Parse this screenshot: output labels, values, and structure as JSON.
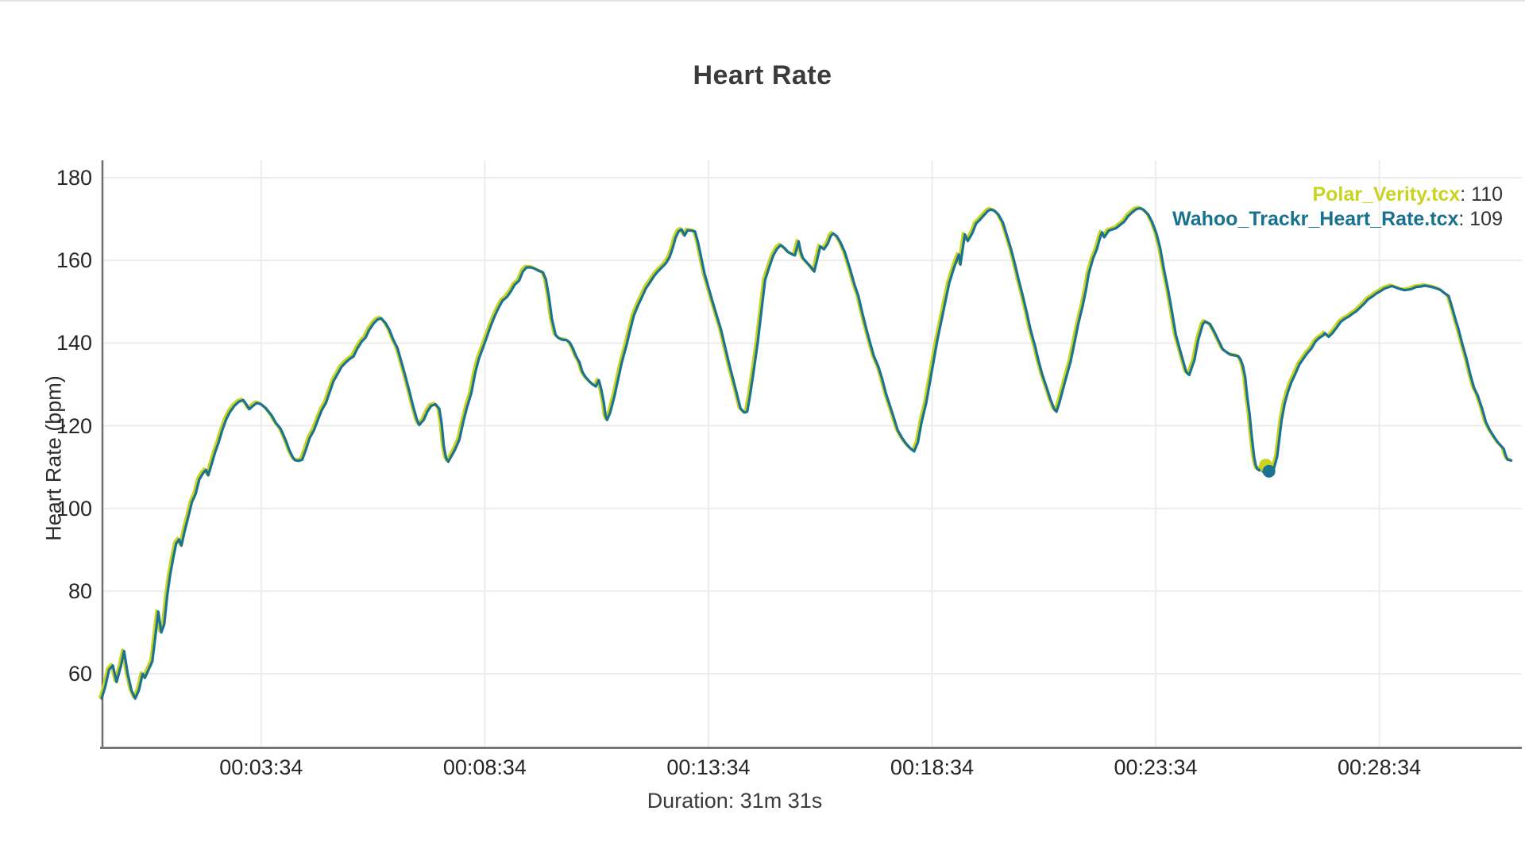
{
  "chart": {
    "title": "Heart Rate",
    "x_axis": {
      "label": "Duration: 31m 31s",
      "tick_labels": [
        "00:03:34",
        "00:08:34",
        "00:13:34",
        "00:18:34",
        "00:23:34",
        "00:28:34"
      ],
      "tick_times_s": [
        214,
        514,
        814,
        1114,
        1414,
        1714
      ]
    },
    "y_axis": {
      "label": "Heart Rate (bpm)",
      "tick_labels": [
        "60",
        "80",
        "100",
        "120",
        "140",
        "160",
        "180"
      ],
      "tick_values": [
        60,
        80,
        100,
        120,
        140,
        160,
        180
      ]
    },
    "legend": [
      {
        "name": "Polar_Verity.tcx",
        "value_text": ": 110",
        "color": "#c8d41f"
      },
      {
        "name": "Wahoo_Trackr_Heart_Rate.tcx",
        "value_text": ": 109",
        "color": "#17718f"
      }
    ],
    "colors": {
      "polar": "#c8d41f",
      "wahoo": "#1b7291",
      "grid": "#ececec",
      "axis": "#757575",
      "text": "#262626"
    }
  },
  "chart_data": {
    "type": "line",
    "title": "Heart Rate",
    "xlabel": "Duration: 31m 31s",
    "ylabel": "Heart Rate (bpm)",
    "x_unit": "seconds",
    "x_range_s": [
      0,
      1891
    ],
    "ylim": [
      42,
      184
    ],
    "grid": true,
    "legend_position": "top-right",
    "x_tick_labels": [
      "00:03:34",
      "00:08:34",
      "00:13:34",
      "00:18:34",
      "00:23:34",
      "00:28:34"
    ],
    "y_ticks": [
      60,
      80,
      100,
      120,
      140,
      160,
      180
    ],
    "series": [
      {
        "name": "Polar_Verity.tcx",
        "color": "#c8d41f",
        "cursor_value_bpm": 110,
        "note": "visually identical to Wahoo trace within ~1 bpm; drawn beneath it"
      },
      {
        "name": "Wahoo_Trackr_Heart_Rate.tcx",
        "color": "#1b7291",
        "cursor_value_bpm": 109
      }
    ],
    "cursor_marker": {
      "time_s": 1566,
      "polar_bpm": 110,
      "wahoo_bpm": 109
    },
    "points_t_bpm": [
      [
        0,
        54
      ],
      [
        5,
        57
      ],
      [
        10,
        61
      ],
      [
        15,
        62
      ],
      [
        20,
        58
      ],
      [
        26,
        62
      ],
      [
        30,
        65.5
      ],
      [
        35,
        60
      ],
      [
        40,
        56
      ],
      [
        45,
        54
      ],
      [
        50,
        56
      ],
      [
        55,
        60
      ],
      [
        58,
        59
      ],
      [
        63,
        61
      ],
      [
        68,
        63
      ],
      [
        72,
        69
      ],
      [
        76,
        75
      ],
      [
        80,
        70
      ],
      [
        84,
        72
      ],
      [
        88,
        79
      ],
      [
        92,
        84
      ],
      [
        96,
        88
      ],
      [
        100,
        91.5
      ],
      [
        104,
        92.5
      ],
      [
        107,
        91
      ],
      [
        112,
        95
      ],
      [
        117,
        98.5
      ],
      [
        121,
        101.5
      ],
      [
        126,
        103.5
      ],
      [
        131,
        107
      ],
      [
        136,
        108.5
      ],
      [
        140,
        109.3
      ],
      [
        143,
        108
      ],
      [
        148,
        111
      ],
      [
        152,
        113.5
      ],
      [
        157,
        116
      ],
      [
        162,
        119
      ],
      [
        167,
        121.5
      ],
      [
        172,
        123.3
      ],
      [
        178,
        124.8
      ],
      [
        184,
        125.8
      ],
      [
        190,
        126.2
      ],
      [
        194,
        125.2
      ],
      [
        198,
        124
      ],
      [
        203,
        124.8
      ],
      [
        208,
        125.5
      ],
      [
        213,
        125.3
      ],
      [
        220,
        124.3
      ],
      [
        228,
        122.5
      ],
      [
        234,
        120.6
      ],
      [
        240,
        119.3
      ],
      [
        244,
        117.7
      ],
      [
        248,
        116
      ],
      [
        252,
        114
      ],
      [
        256,
        112.5
      ],
      [
        259,
        111.7
      ],
      [
        264,
        111.5
      ],
      [
        269,
        111.8
      ],
      [
        274,
        114.2
      ],
      [
        279,
        117
      ],
      [
        285,
        119
      ],
      [
        290,
        121.4
      ],
      [
        295,
        123.7
      ],
      [
        301,
        125.6
      ],
      [
        306,
        128.2
      ],
      [
        311,
        130.8
      ],
      [
        317,
        132.7
      ],
      [
        322,
        134.3
      ],
      [
        328,
        135.4
      ],
      [
        333,
        136.2
      ],
      [
        338,
        136.8
      ],
      [
        343,
        138.7
      ],
      [
        349,
        140.4
      ],
      [
        354,
        141.3
      ],
      [
        359,
        143.2
      ],
      [
        365,
        144.8
      ],
      [
        370,
        145.7
      ],
      [
        375,
        146
      ],
      [
        381,
        144.8
      ],
      [
        386,
        143.2
      ],
      [
        391,
        140.9
      ],
      [
        397,
        138.7
      ],
      [
        402,
        135.5
      ],
      [
        407,
        132.3
      ],
      [
        413,
        128.2
      ],
      [
        418,
        124.6
      ],
      [
        423,
        121.4
      ],
      [
        426,
        120.2
      ],
      [
        432,
        121.4
      ],
      [
        437,
        123.4
      ],
      [
        442,
        124.8
      ],
      [
        448,
        125.2
      ],
      [
        453,
        124.1
      ],
      [
        456,
        120.6
      ],
      [
        459,
        115.1
      ],
      [
        462,
        112.2
      ],
      [
        465,
        111.3
      ],
      [
        469,
        112.6
      ],
      [
        474,
        114.2
      ],
      [
        480,
        116.7
      ],
      [
        485,
        120.9
      ],
      [
        490,
        124.4
      ],
      [
        496,
        128
      ],
      [
        501,
        132.7
      ],
      [
        506,
        136.2
      ],
      [
        512,
        139.1
      ],
      [
        517,
        141.6
      ],
      [
        522,
        144.2
      ],
      [
        528,
        146.8
      ],
      [
        533,
        148.7
      ],
      [
        538,
        150.3
      ],
      [
        544,
        151.2
      ],
      [
        549,
        152.5
      ],
      [
        554,
        154.1
      ],
      [
        560,
        155.1
      ],
      [
        565,
        157.3
      ],
      [
        570,
        158.3
      ],
      [
        576,
        158.3
      ],
      [
        581,
        158
      ],
      [
        586,
        157.5
      ],
      [
        592,
        157.1
      ],
      [
        596,
        155.4
      ],
      [
        600,
        151.2
      ],
      [
        604,
        145.8
      ],
      [
        609,
        142
      ],
      [
        613,
        141.2
      ],
      [
        618,
        140.8
      ],
      [
        624,
        140.7
      ],
      [
        628,
        140.1
      ],
      [
        632,
        138.8
      ],
      [
        636,
        137
      ],
      [
        641,
        135.3
      ],
      [
        645,
        133
      ],
      [
        649,
        131.8
      ],
      [
        654,
        130.8
      ],
      [
        658,
        130.1
      ],
      [
        663,
        129.5
      ],
      [
        667,
        131
      ],
      [
        670,
        129
      ],
      [
        674,
        125.3
      ],
      [
        676,
        122.4
      ],
      [
        678,
        121.4
      ],
      [
        682,
        123.1
      ],
      [
        688,
        127.2
      ],
      [
        693,
        131.4
      ],
      [
        698,
        135.5
      ],
      [
        704,
        139.4
      ],
      [
        709,
        143.2
      ],
      [
        714,
        146.7
      ],
      [
        720,
        149.3
      ],
      [
        725,
        151.2
      ],
      [
        730,
        153.2
      ],
      [
        736,
        154.8
      ],
      [
        741,
        156.2
      ],
      [
        746,
        157.3
      ],
      [
        752,
        158.4
      ],
      [
        757,
        159.3
      ],
      [
        762,
        160.8
      ],
      [
        766,
        163
      ],
      [
        770,
        165.5
      ],
      [
        774,
        167
      ],
      [
        778,
        167.5
      ],
      [
        782,
        166
      ],
      [
        786,
        167.3
      ],
      [
        791,
        167.2
      ],
      [
        796,
        167
      ],
      [
        800,
        164.4
      ],
      [
        809,
        156.7
      ],
      [
        820,
        149.7
      ],
      [
        831,
        143.2
      ],
      [
        841,
        135.5
      ],
      [
        852,
        127.8
      ],
      [
        857,
        124.2
      ],
      [
        862,
        123.2
      ],
      [
        866,
        123.4
      ],
      [
        869,
        126.5
      ],
      [
        874,
        132.3
      ],
      [
        880,
        140
      ],
      [
        885,
        147.7
      ],
      [
        890,
        155.3
      ],
      [
        896,
        158.6
      ],
      [
        901,
        161.2
      ],
      [
        906,
        162.8
      ],
      [
        911,
        163.7
      ],
      [
        916,
        163
      ],
      [
        921,
        162
      ],
      [
        926,
        161.5
      ],
      [
        930,
        161.2
      ],
      [
        935,
        164.6
      ],
      [
        938,
        162
      ],
      [
        941,
        160.5
      ],
      [
        946,
        159.5
      ],
      [
        951,
        158.5
      ],
      [
        956,
        157.3
      ],
      [
        962,
        161.8
      ],
      [
        964,
        163.4
      ],
      [
        969,
        162.7
      ],
      [
        974,
        164
      ],
      [
        978,
        165.9
      ],
      [
        981,
        166.5
      ],
      [
        986,
        165.9
      ],
      [
        991,
        164.4
      ],
      [
        997,
        162
      ],
      [
        1004,
        157.9
      ],
      [
        1010,
        154.1
      ],
      [
        1015,
        151.5
      ],
      [
        1020,
        147.6
      ],
      [
        1026,
        143.3
      ],
      [
        1031,
        140
      ],
      [
        1036,
        136.8
      ],
      [
        1042,
        134.3
      ],
      [
        1047,
        131.4
      ],
      [
        1052,
        127.9
      ],
      [
        1058,
        124.6
      ],
      [
        1063,
        121.8
      ],
      [
        1068,
        118.9
      ],
      [
        1074,
        117
      ],
      [
        1079,
        115.7
      ],
      [
        1085,
        114.5
      ],
      [
        1090,
        113.8
      ],
      [
        1095,
        116
      ],
      [
        1100,
        120.9
      ],
      [
        1106,
        125.4
      ],
      [
        1111,
        130.5
      ],
      [
        1116,
        135.6
      ],
      [
        1121,
        140.7
      ],
      [
        1127,
        145.8
      ],
      [
        1132,
        150.2
      ],
      [
        1137,
        154.5
      ],
      [
        1143,
        158
      ],
      [
        1148,
        160.5
      ],
      [
        1150,
        161.4
      ],
      [
        1152,
        159
      ],
      [
        1155,
        162.7
      ],
      [
        1158,
        166.3
      ],
      [
        1162,
        164.7
      ],
      [
        1168,
        166.6
      ],
      [
        1173,
        168.9
      ],
      [
        1178,
        169.8
      ],
      [
        1183,
        170.8
      ],
      [
        1189,
        172
      ],
      [
        1193,
        172.3
      ],
      [
        1198,
        172
      ],
      [
        1203,
        171.1
      ],
      [
        1209,
        169.2
      ],
      [
        1214,
        166.3
      ],
      [
        1220,
        162.7
      ],
      [
        1225,
        159.2
      ],
      [
        1230,
        155.4
      ],
      [
        1236,
        151.2
      ],
      [
        1241,
        147.4
      ],
      [
        1246,
        143.3
      ],
      [
        1252,
        139.4
      ],
      [
        1257,
        135.6
      ],
      [
        1262,
        132.3
      ],
      [
        1268,
        129.1
      ],
      [
        1273,
        126.3
      ],
      [
        1278,
        124
      ],
      [
        1281,
        123.4
      ],
      [
        1285,
        125.7
      ],
      [
        1289,
        128.4
      ],
      [
        1294,
        131.7
      ],
      [
        1300,
        135.6
      ],
      [
        1305,
        140
      ],
      [
        1310,
        144.5
      ],
      [
        1316,
        149
      ],
      [
        1321,
        153.4
      ],
      [
        1324,
        156.7
      ],
      [
        1330,
        160.5
      ],
      [
        1335,
        162.7
      ],
      [
        1340,
        165.9
      ],
      [
        1342,
        166.8
      ],
      [
        1345,
        165.6
      ],
      [
        1351,
        167.2
      ],
      [
        1356,
        167.5
      ],
      [
        1361,
        167.8
      ],
      [
        1367,
        168.7
      ],
      [
        1372,
        169.4
      ],
      [
        1377,
        170.7
      ],
      [
        1383,
        171.7
      ],
      [
        1388,
        172.4
      ],
      [
        1393,
        172.6
      ],
      [
        1398,
        172.2
      ],
      [
        1404,
        171.1
      ],
      [
        1409,
        169.4
      ],
      [
        1415,
        166.5
      ],
      [
        1420,
        163
      ],
      [
        1425,
        157.9
      ],
      [
        1431,
        152.5
      ],
      [
        1436,
        147.4
      ],
      [
        1441,
        142
      ],
      [
        1447,
        138.1
      ],
      [
        1452,
        134.9
      ],
      [
        1455,
        133
      ],
      [
        1459,
        132.3
      ],
      [
        1466,
        135.9
      ],
      [
        1471,
        140.7
      ],
      [
        1477,
        144.5
      ],
      [
        1480,
        145.2
      ],
      [
        1487,
        144.6
      ],
      [
        1493,
        142.6
      ],
      [
        1498,
        140.7
      ],
      [
        1504,
        138.5
      ],
      [
        1509,
        137.8
      ],
      [
        1514,
        137.2
      ],
      [
        1520,
        137
      ],
      [
        1525,
        136.8
      ],
      [
        1528,
        136
      ],
      [
        1531,
        134.5
      ],
      [
        1534,
        131.8
      ],
      [
        1537,
        126.7
      ],
      [
        1540,
        122.8
      ],
      [
        1542,
        118.9
      ],
      [
        1544,
        115.7
      ],
      [
        1546,
        112.6
      ],
      [
        1548,
        110.6
      ],
      [
        1550,
        109.6
      ],
      [
        1553,
        109.2
      ],
      [
        1556,
        109.9
      ],
      [
        1558,
        108.9
      ],
      [
        1560,
        109.6
      ],
      [
        1563,
        110
      ],
      [
        1566,
        109
      ],
      [
        1571,
        108.7
      ],
      [
        1574,
        110.6
      ],
      [
        1577,
        112.6
      ],
      [
        1580,
        117
      ],
      [
        1583,
        121.4
      ],
      [
        1587,
        125.3
      ],
      [
        1591,
        128
      ],
      [
        1596,
        130.5
      ],
      [
        1601,
        132.4
      ],
      [
        1607,
        134.9
      ],
      [
        1612,
        136.2
      ],
      [
        1617,
        137.5
      ],
      [
        1623,
        138.7
      ],
      [
        1628,
        140.3
      ],
      [
        1633,
        141.2
      ],
      [
        1639,
        141.9
      ],
      [
        1641,
        142.4
      ],
      [
        1646,
        141.5
      ],
      [
        1651,
        142.4
      ],
      [
        1657,
        143.8
      ],
      [
        1662,
        145.1
      ],
      [
        1667,
        145.8
      ],
      [
        1673,
        146.4
      ],
      [
        1678,
        147.1
      ],
      [
        1683,
        147.7
      ],
      [
        1689,
        148.7
      ],
      [
        1694,
        149.6
      ],
      [
        1699,
        150.6
      ],
      [
        1705,
        151.3
      ],
      [
        1710,
        152
      ],
      [
        1715,
        152.5
      ],
      [
        1721,
        153.2
      ],
      [
        1726,
        153.5
      ],
      [
        1731,
        153.8
      ],
      [
        1737,
        153.4
      ],
      [
        1743,
        153
      ],
      [
        1748,
        152.8
      ],
      [
        1756,
        153
      ],
      [
        1764,
        153.6
      ],
      [
        1770,
        153.7
      ],
      [
        1775,
        153.9
      ],
      [
        1781,
        153.7
      ],
      [
        1786,
        153.5
      ],
      [
        1791,
        153.2
      ],
      [
        1796,
        152.9
      ],
      [
        1802,
        152
      ],
      [
        1807,
        151.4
      ],
      [
        1812,
        148.4
      ],
      [
        1817,
        145.2
      ],
      [
        1820,
        143.5
      ],
      [
        1825,
        140
      ],
      [
        1831,
        136.2
      ],
      [
        1836,
        132.4
      ],
      [
        1841,
        129.2
      ],
      [
        1846,
        127.3
      ],
      [
        1852,
        124.1
      ],
      [
        1857,
        120.9
      ],
      [
        1862,
        119
      ],
      [
        1868,
        117.3
      ],
      [
        1873,
        116
      ],
      [
        1878,
        115
      ],
      [
        1881,
        114.4
      ],
      [
        1883,
        113.1
      ],
      [
        1886,
        111.8
      ],
      [
        1891,
        111.6
      ]
    ]
  }
}
